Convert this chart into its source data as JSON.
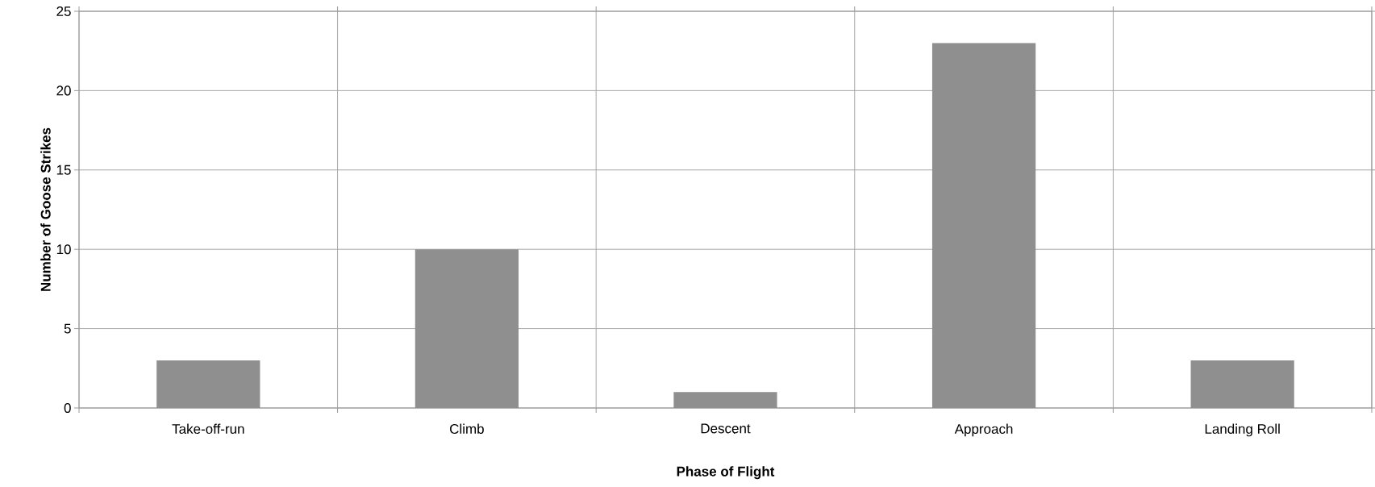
{
  "chart_data": {
    "type": "bar",
    "categories": [
      "Take-off-run",
      "Climb",
      "Descent",
      "Approach",
      "Landing Roll"
    ],
    "values": [
      3,
      10,
      1,
      23,
      3
    ],
    "color": "#8f8f8f",
    "xlabel": "Phase of Flight",
    "ylabel": "Number of Goose Strikes",
    "ylim": [
      0,
      25
    ],
    "yticks": [
      0,
      5,
      10,
      15,
      20,
      25
    ],
    "grid": true
  }
}
